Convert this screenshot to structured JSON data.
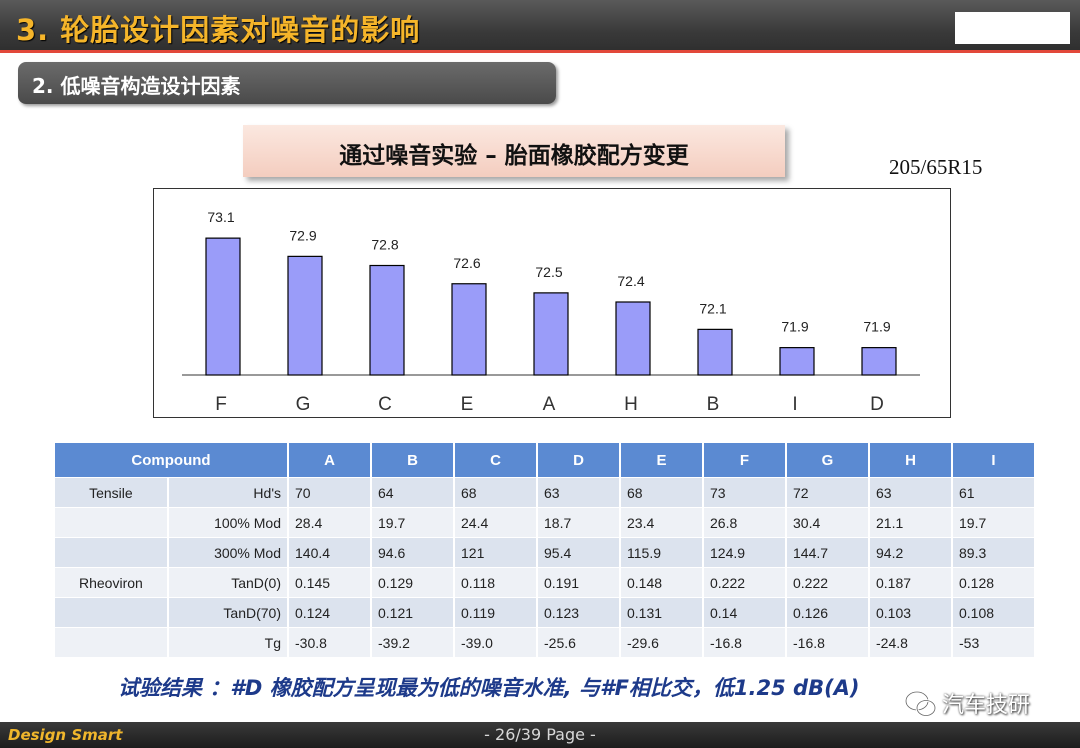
{
  "header": {
    "title": "3. 轮胎设计因素对噪音的影响"
  },
  "subtitle": "2. 低噪音构造设计因素",
  "experiment_title": "通过噪音实验 – 胎面橡胶配方变更",
  "tire_size": "205/65R15",
  "chart_data": {
    "type": "bar",
    "categories": [
      "F",
      "G",
      "C",
      "E",
      "A",
      "H",
      "B",
      "I",
      "D"
    ],
    "values": [
      73.1,
      72.9,
      72.8,
      72.6,
      72.5,
      72.4,
      72.1,
      71.9,
      71.9
    ],
    "value_labels": [
      "73.1",
      "72.9",
      "72.8",
      "72.6",
      "72.5",
      "72.4",
      "72.1",
      "71.9",
      "71.9"
    ],
    "title": "",
    "xlabel": "",
    "ylabel": "",
    "ylim": [
      71.6,
      73.2
    ],
    "grid": false,
    "bar_color": "#9a9cf9"
  },
  "table": {
    "header_label": "Compound",
    "compounds": [
      "A",
      "B",
      "C",
      "D",
      "E",
      "F",
      "G",
      "H",
      "I"
    ],
    "rows": [
      {
        "group": "Tensile",
        "property": "Hd's",
        "values": [
          "70",
          "64",
          "68",
          "63",
          "68",
          "73",
          "72",
          "63",
          "61"
        ]
      },
      {
        "group": "",
        "property": "100% Mod",
        "values": [
          "28.4",
          "19.7",
          "24.4",
          "18.7",
          "23.4",
          "26.8",
          "30.4",
          "21.1",
          "19.7"
        ]
      },
      {
        "group": "",
        "property": "300% Mod",
        "values": [
          "140.4",
          "94.6",
          "121",
          "95.4",
          "115.9",
          "124.9",
          "144.7",
          "94.2",
          "89.3"
        ]
      },
      {
        "group": "Rheoviron",
        "property": "TanD(0)",
        "values": [
          "0.145",
          "0.129",
          "0.118",
          "0.191",
          "0.148",
          "0.222",
          "0.222",
          "0.187",
          "0.128"
        ]
      },
      {
        "group": "",
        "property": "TanD(70)",
        "values": [
          "0.124",
          "0.121",
          "0.119",
          "0.123",
          "0.131",
          "0.14",
          "0.126",
          "0.103",
          "0.108"
        ]
      },
      {
        "group": "",
        "property": "Tg",
        "values": [
          "-30.8",
          "-39.2",
          "-39.0",
          "-25.6",
          "-29.6",
          "-16.8",
          "-16.8",
          "-24.8",
          "-53"
        ]
      }
    ]
  },
  "result_text": "试验结果 ：#D 橡胶配方呈现最为低的噪音水准, 与#F相比交，低1.25 dB(A)",
  "footer": {
    "brand": "Design Smart",
    "page": "- 26/39 Page -"
  },
  "watermark": {
    "text": "汽车技研",
    "icon": "wechat-icon"
  },
  "colors": {
    "accent": "#f5b52a",
    "table_header": "#5b8ad2",
    "result_text": "#1d3a8a",
    "rule": "#e2483a"
  }
}
